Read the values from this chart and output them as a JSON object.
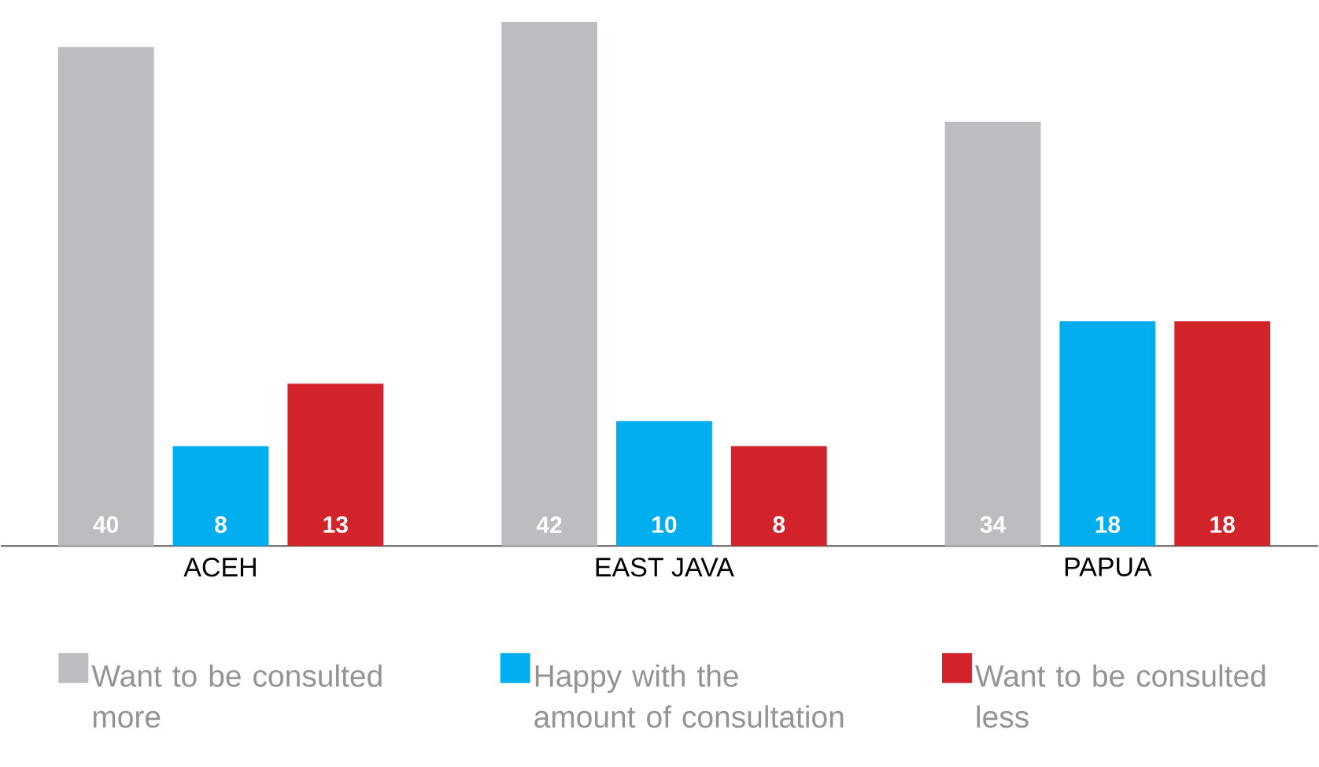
{
  "chart_data": {
    "type": "bar",
    "categories": [
      "ACEH",
      "EAST JAVA",
      "PAPUA"
    ],
    "series": [
      {
        "name": "Want to be consulted more",
        "color": "#bcbdc0",
        "values": [
          40,
          42,
          34
        ]
      },
      {
        "name": "Happy with the amount of consultation",
        "color": "#00aeef",
        "values": [
          8,
          10,
          18
        ]
      },
      {
        "name": "Want to be consulted less",
        "color": "#d2232a",
        "values": [
          13,
          8,
          18
        ]
      }
    ],
    "data_labels": true,
    "legend": "bottom"
  }
}
